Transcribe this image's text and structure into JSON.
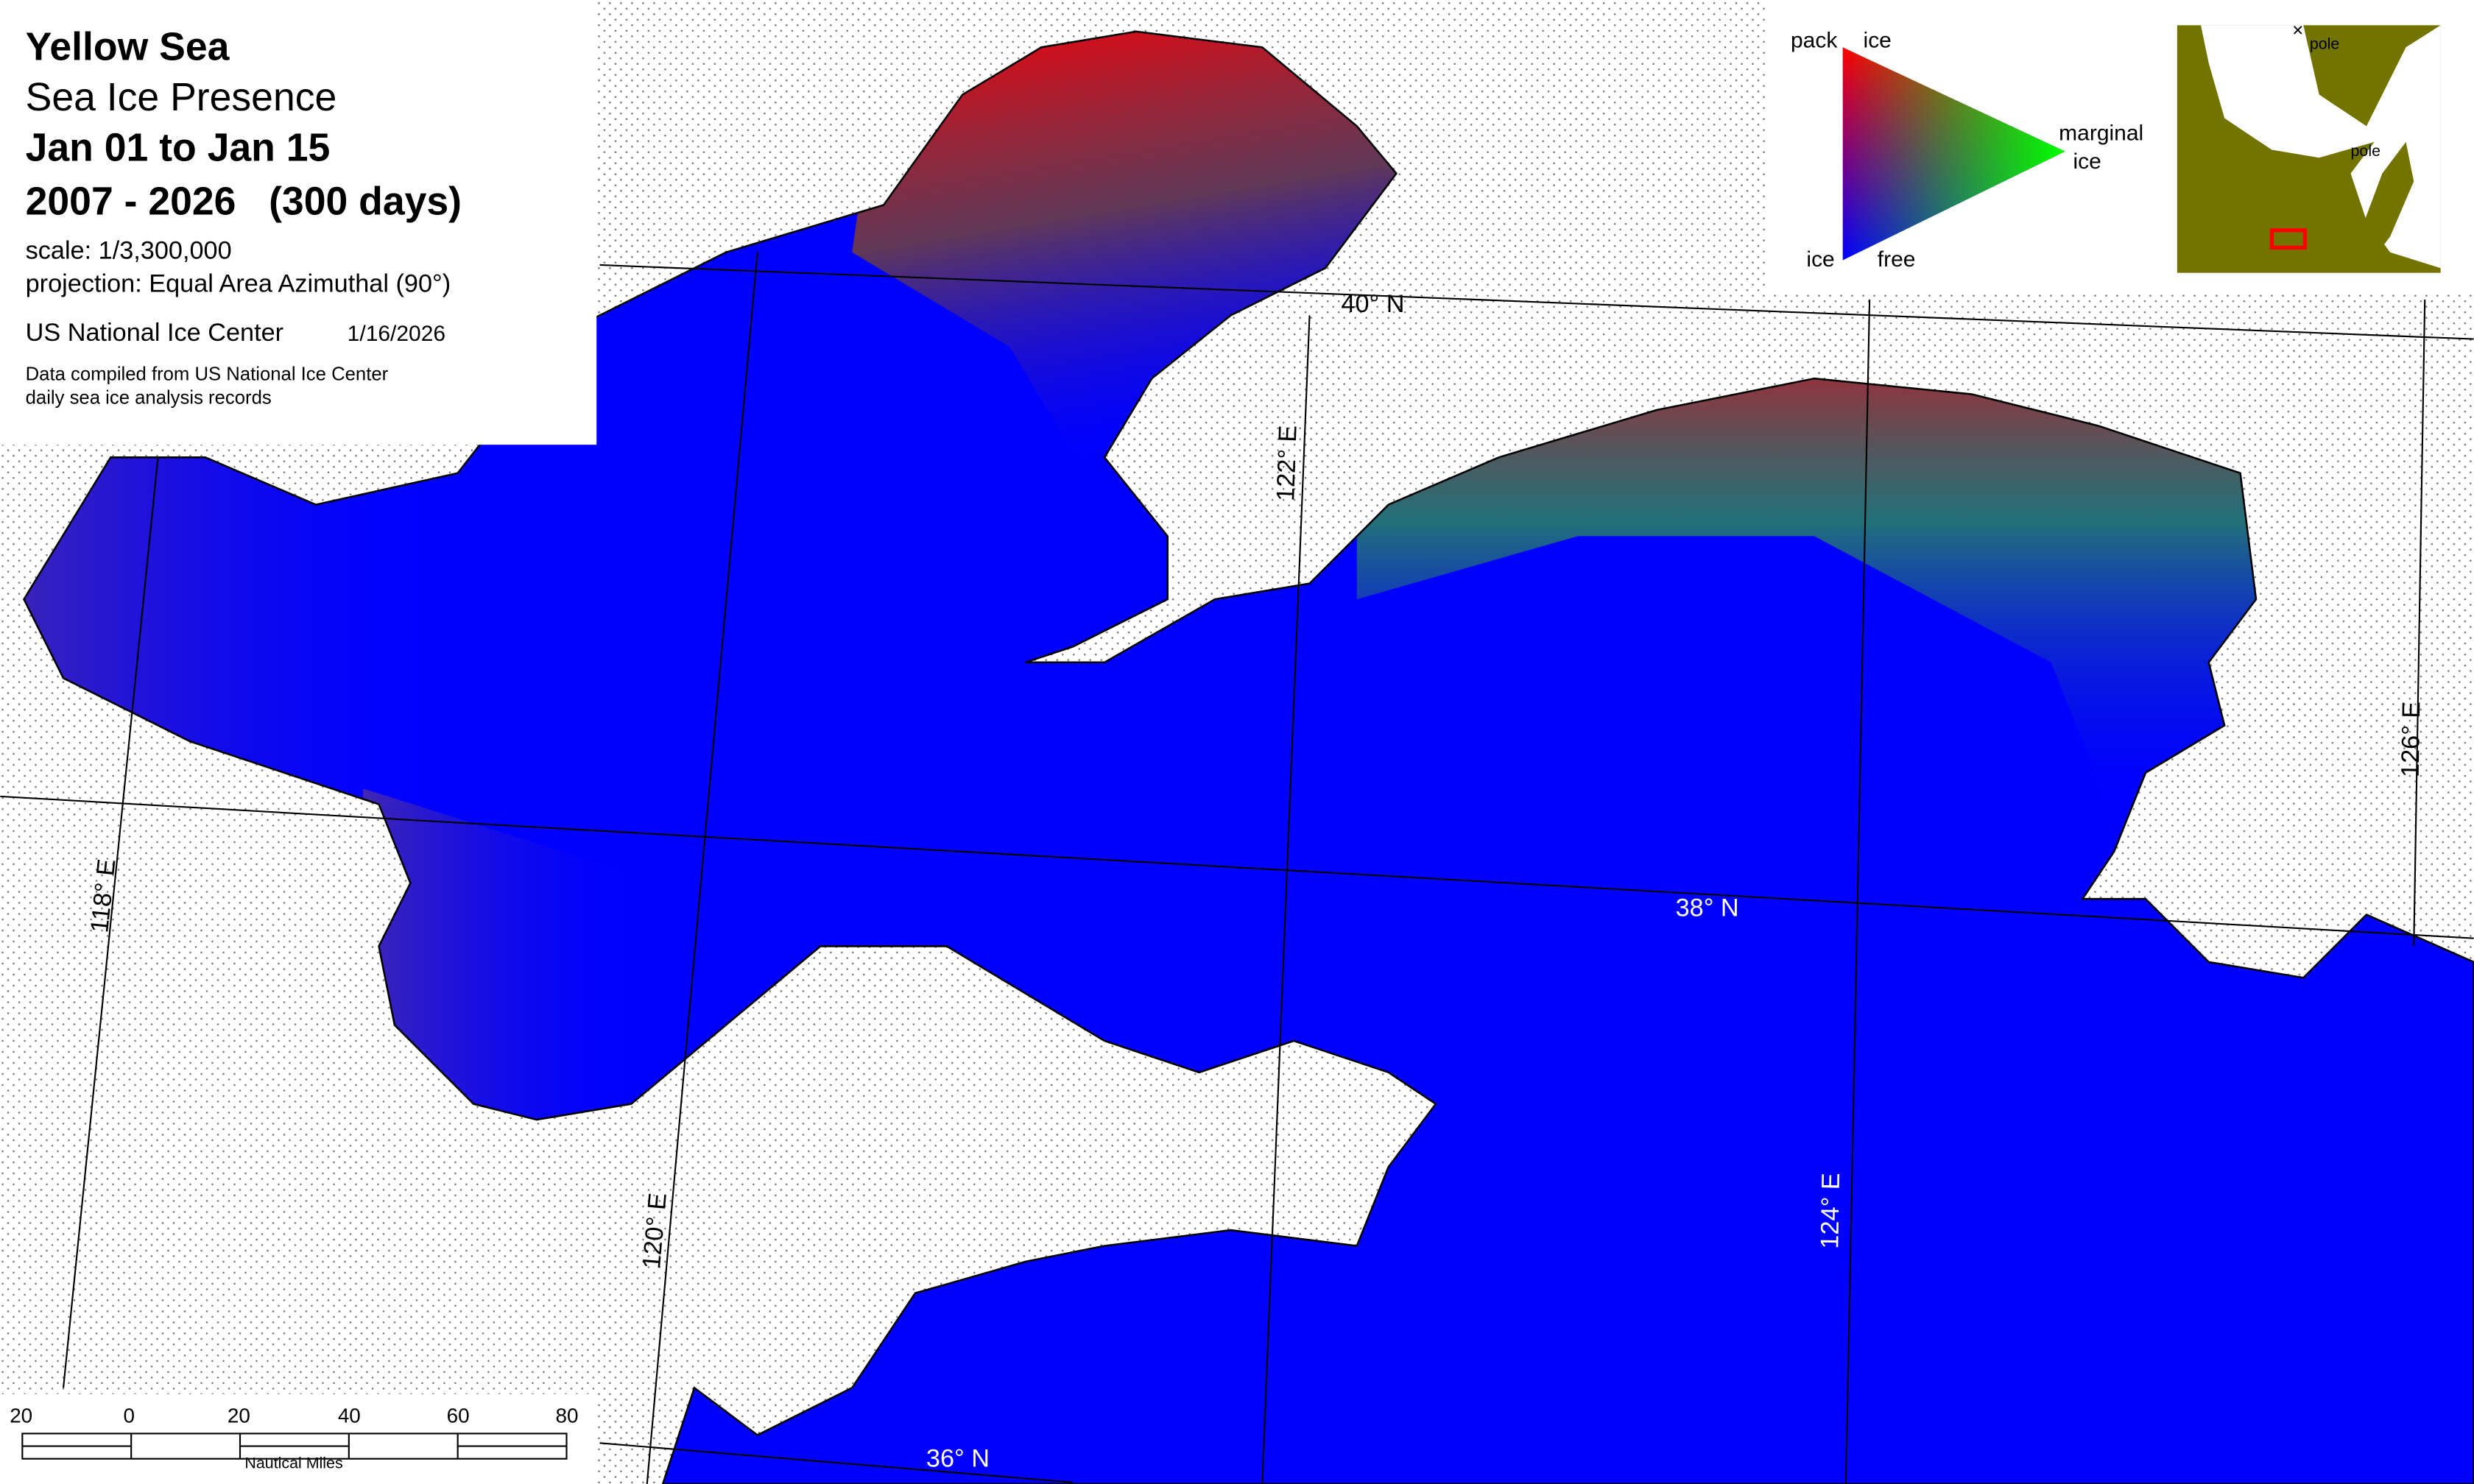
{
  "title_block": {
    "region": "Yellow Sea",
    "product": "Sea Ice Presence",
    "period": "Jan 01 to Jan 15",
    "years": "2007 - 2026   (300 days)",
    "scale": "scale: 1/3,300,000",
    "projection": "projection: Equal Area Azimuthal (90°)",
    "agency": "US National Ice Center",
    "date": "1/16/2026",
    "source_line1": "Data compiled from US National Ice Center",
    "source_line2": "daily sea ice analysis records"
  },
  "legend": {
    "pack_label_1": "pack",
    "pack_label_2": "ice",
    "marginal_label_1": "marginal",
    "marginal_label_2": "ice",
    "free_label_1": "ice",
    "free_label_2": "free",
    "colors": {
      "pack_ice": "#ff0000",
      "marginal_ice": "#00ff00",
      "ice_free": "#0000ff"
    }
  },
  "inset": {
    "pole_marker": "×",
    "pole_label_top": "pole",
    "pole_label_mid": "pole",
    "land_color": "#737300",
    "extent_box_color": "#ff0000"
  },
  "graticule": {
    "lat_40": "40° N",
    "lat_38": "38° N",
    "lat_36": "36° N",
    "lon_118": "118° E",
    "lon_120": "120° E",
    "lon_122": "122° E",
    "lon_124": "124° E",
    "lon_126": "126° E"
  },
  "scale_bar": {
    "ticks": [
      "20",
      "0",
      "20",
      "40",
      "60",
      "80"
    ],
    "unit": "Nautical Miles"
  }
}
